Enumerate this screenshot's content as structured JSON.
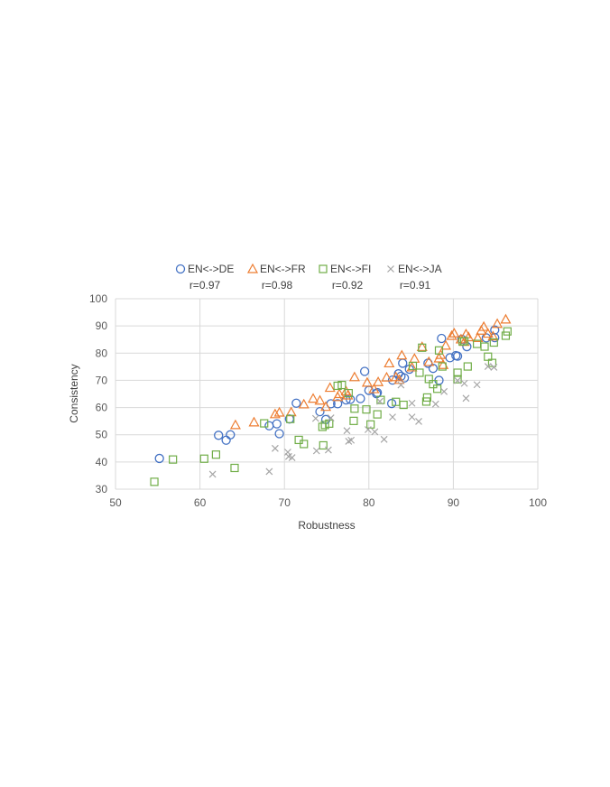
{
  "chart_data": {
    "type": "scatter",
    "title": "",
    "xlabel": "Robustness",
    "ylabel": "Consistency",
    "xlim": [
      50,
      100
    ],
    "ylim": [
      30,
      100
    ],
    "xticks": [
      50,
      60,
      70,
      80,
      90,
      100
    ],
    "yticks": [
      30,
      40,
      50,
      60,
      70,
      80,
      90,
      100
    ],
    "grid": true,
    "legend_position": "top",
    "series": [
      {
        "name": "EN<->DE",
        "annotation": "r=0.97",
        "marker": "circle",
        "color": "#4472C4",
        "points": [
          [
            55.2,
            41.3
          ],
          [
            62.2,
            49.8
          ],
          [
            63.1,
            48.0
          ],
          [
            63.6,
            50.0
          ],
          [
            68.2,
            53.3
          ],
          [
            69.1,
            54.0
          ],
          [
            69.4,
            50.4
          ],
          [
            70.6,
            55.8
          ],
          [
            71.4,
            61.6
          ],
          [
            74.2,
            58.5
          ],
          [
            74.9,
            55.6
          ],
          [
            75.5,
            61.4
          ],
          [
            76.3,
            61.4
          ],
          [
            77.3,
            62.8
          ],
          [
            77.8,
            63.0
          ],
          [
            79.0,
            63.3
          ],
          [
            79.5,
            73.3
          ],
          [
            80.0,
            66.3
          ],
          [
            80.9,
            65.1
          ],
          [
            82.8,
            70.1
          ],
          [
            83.5,
            72.4
          ],
          [
            83.8,
            71.5
          ],
          [
            84.0,
            76.3
          ],
          [
            84.8,
            74.1
          ],
          [
            87.0,
            76.3
          ],
          [
            87.6,
            74.4
          ],
          [
            88.3,
            70.0
          ],
          [
            88.6,
            85.4
          ],
          [
            89.6,
            78.3
          ],
          [
            90.3,
            79.1
          ],
          [
            91.0,
            85.1
          ],
          [
            91.6,
            82.4
          ],
          [
            93.9,
            85.6
          ],
          [
            94.9,
            85.7
          ],
          [
            94.9,
            88.5
          ],
          [
            82.7,
            61.5
          ],
          [
            81.0,
            65.5
          ],
          [
            84.2,
            70.9
          ],
          [
            90.5,
            78.9
          ]
        ]
      },
      {
        "name": "EN<->FR",
        "annotation": "r=0.98",
        "marker": "triangle",
        "color": "#ED7D31",
        "points": [
          [
            64.2,
            53.6
          ],
          [
            66.4,
            54.6
          ],
          [
            68.9,
            57.6
          ],
          [
            69.4,
            58.2
          ],
          [
            70.8,
            58.3
          ],
          [
            72.3,
            61.2
          ],
          [
            73.4,
            63.3
          ],
          [
            74.2,
            62.6
          ],
          [
            74.9,
            60.3
          ],
          [
            75.4,
            67.3
          ],
          [
            76.3,
            63.9
          ],
          [
            76.5,
            65.0
          ],
          [
            77.3,
            66.0
          ],
          [
            77.5,
            64.5
          ],
          [
            78.3,
            71.2
          ],
          [
            79.8,
            69.2
          ],
          [
            80.6,
            66.8
          ],
          [
            81.1,
            69.4
          ],
          [
            82.1,
            71.1
          ],
          [
            82.4,
            76.3
          ],
          [
            83.2,
            71.2
          ],
          [
            83.6,
            70.2
          ],
          [
            83.9,
            79.2
          ],
          [
            85.1,
            74.8
          ],
          [
            85.4,
            78.0
          ],
          [
            86.3,
            82.3
          ],
          [
            87.1,
            76.8
          ],
          [
            88.3,
            78.1
          ],
          [
            88.5,
            79.4
          ],
          [
            88.8,
            75.7
          ],
          [
            89.1,
            82.8
          ],
          [
            89.8,
            86.4
          ],
          [
            90.1,
            87.3
          ],
          [
            90.9,
            85.1
          ],
          [
            91.3,
            84.2
          ],
          [
            91.5,
            87.0
          ],
          [
            91.8,
            85.9
          ],
          [
            92.9,
            85.6
          ],
          [
            93.3,
            88.3
          ],
          [
            93.6,
            89.7
          ],
          [
            94.1,
            87.2
          ],
          [
            94.7,
            86.2
          ],
          [
            95.2,
            90.8
          ],
          [
            96.2,
            92.4
          ]
        ]
      },
      {
        "name": "EN<->FI",
        "annotation": "r=0.92",
        "marker": "square",
        "color": "#70AD47",
        "points": [
          [
            54.6,
            32.7
          ],
          [
            56.8,
            40.9
          ],
          [
            60.5,
            41.2
          ],
          [
            61.9,
            42.7
          ],
          [
            64.1,
            37.8
          ],
          [
            67.6,
            54.2
          ],
          [
            70.7,
            55.8
          ],
          [
            71.7,
            48.1
          ],
          [
            72.3,
            46.6
          ],
          [
            74.5,
            52.9
          ],
          [
            74.6,
            46.1
          ],
          [
            74.8,
            53.6
          ],
          [
            75.3,
            54.1
          ],
          [
            76.3,
            68.0
          ],
          [
            76.8,
            68.3
          ],
          [
            77.6,
            65.3
          ],
          [
            78.2,
            55.1
          ],
          [
            78.3,
            59.6
          ],
          [
            79.7,
            59.3
          ],
          [
            80.2,
            53.8
          ],
          [
            81.0,
            57.5
          ],
          [
            81.4,
            62.8
          ],
          [
            83.2,
            62.1
          ],
          [
            84.1,
            61.0
          ],
          [
            85.2,
            75.3
          ],
          [
            86.0,
            72.8
          ],
          [
            86.3,
            82.0
          ],
          [
            86.8,
            62.2
          ],
          [
            86.9,
            63.7
          ],
          [
            87.1,
            70.5
          ],
          [
            87.6,
            68.6
          ],
          [
            88.1,
            66.9
          ],
          [
            88.3,
            81.0
          ],
          [
            88.7,
            75.1
          ],
          [
            90.5,
            72.8
          ],
          [
            90.5,
            70.4
          ],
          [
            91.1,
            84.3
          ],
          [
            91.3,
            84.4
          ],
          [
            91.7,
            75.1
          ],
          [
            92.8,
            83.4
          ],
          [
            93.7,
            82.4
          ],
          [
            94.1,
            78.7
          ],
          [
            94.6,
            76.4
          ],
          [
            94.8,
            83.9
          ],
          [
            96.2,
            86.4
          ],
          [
            96.4,
            88.0
          ]
        ]
      },
      {
        "name": "EN<->JA",
        "annotation": "r=0.91",
        "marker": "x",
        "color": "#A5A5A5",
        "points": [
          [
            61.5,
            35.5
          ],
          [
            68.2,
            36.5
          ],
          [
            68.9,
            45.0
          ],
          [
            70.4,
            43.6
          ],
          [
            70.5,
            42.0
          ],
          [
            70.9,
            41.6
          ],
          [
            73.7,
            56.0
          ],
          [
            73.8,
            44.1
          ],
          [
            75.2,
            44.4
          ],
          [
            75.5,
            56.2
          ],
          [
            77.4,
            51.5
          ],
          [
            77.6,
            47.6
          ],
          [
            77.9,
            48.0
          ],
          [
            79.9,
            51.9
          ],
          [
            80.7,
            51.1
          ],
          [
            81.3,
            62.3
          ],
          [
            81.8,
            48.3
          ],
          [
            82.8,
            56.5
          ],
          [
            85.1,
            56.5
          ],
          [
            85.9,
            54.9
          ],
          [
            85.1,
            61.6
          ],
          [
            87.9,
            61.3
          ],
          [
            88.9,
            65.9
          ],
          [
            90.5,
            69.9
          ],
          [
            91.3,
            68.9
          ],
          [
            91.5,
            63.4
          ],
          [
            92.8,
            68.4
          ],
          [
            94.1,
            75.1
          ],
          [
            94.8,
            74.8
          ],
          [
            83.8,
            68.3
          ]
        ]
      }
    ]
  }
}
